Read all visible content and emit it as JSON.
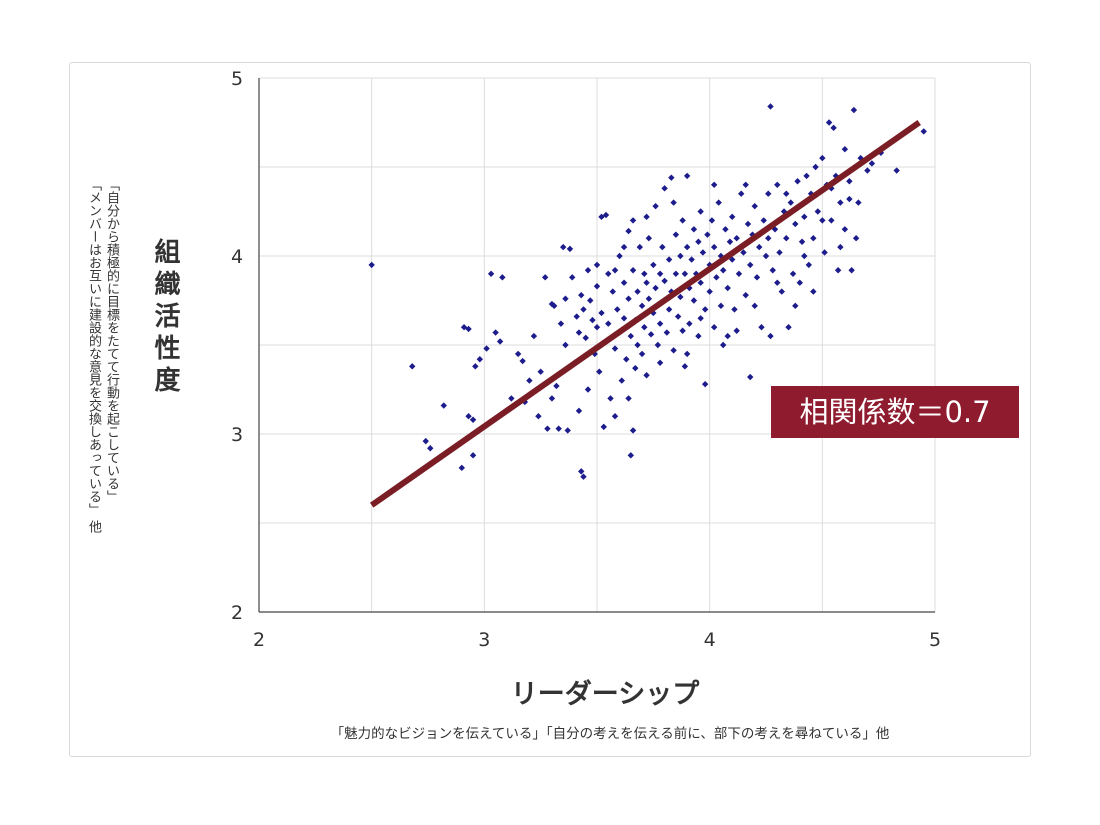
{
  "chart_data": {
    "type": "scatter",
    "title": "",
    "xlabel": "リーダーシップ",
    "xlabel_note": "「魅力的なビジョンを伝えている」「自分の考えを伝える前に、部下の考えを尋ねている」他",
    "ylabel": "組織活性度",
    "ylabel_note_lines": [
      "「自分から積極的に目標をたてて行動を起こしている」",
      "「メンバーはお互いに建設的な意見を交換しあっている」 他"
    ],
    "xlim": [
      2,
      5
    ],
    "ylim": [
      2,
      5
    ],
    "x_ticks": [
      "2",
      "3",
      "4",
      "5"
    ],
    "y_ticks": [
      "2",
      "3",
      "4",
      "5"
    ],
    "grid": true,
    "point_color": "#1c1c8c",
    "trendline": {
      "x": [
        2.5,
        4.93
      ],
      "y": [
        2.6,
        4.75
      ],
      "color": "#7a1d24"
    },
    "annotation": {
      "text": "相関係数＝0.7",
      "background": "#8e1b2e",
      "color": "#ffffff"
    },
    "points": [
      [
        2.5,
        3.95
      ],
      [
        2.68,
        3.38
      ],
      [
        2.74,
        2.96
      ],
      [
        2.76,
        2.92
      ],
      [
        2.82,
        3.16
      ],
      [
        2.9,
        2.81
      ],
      [
        2.91,
        3.6
      ],
      [
        2.93,
        3.59
      ],
      [
        2.93,
        3.1
      ],
      [
        2.95,
        3.08
      ],
      [
        2.95,
        2.88
      ],
      [
        2.96,
        3.38
      ],
      [
        2.98,
        3.42
      ],
      [
        3.01,
        3.48
      ],
      [
        3.03,
        3.9
      ],
      [
        3.05,
        3.57
      ],
      [
        3.07,
        3.52
      ],
      [
        3.08,
        3.88
      ],
      [
        3.1,
        3.13
      ],
      [
        3.12,
        3.2
      ],
      [
        3.15,
        3.45
      ],
      [
        3.17,
        3.41
      ],
      [
        3.18,
        3.18
      ],
      [
        3.2,
        3.3
      ],
      [
        3.22,
        3.55
      ],
      [
        3.24,
        3.1
      ],
      [
        3.25,
        3.35
      ],
      [
        3.27,
        3.88
      ],
      [
        3.28,
        3.03
      ],
      [
        3.3,
        3.2
      ],
      [
        3.31,
        3.72
      ],
      [
        3.32,
        3.27
      ],
      [
        3.33,
        3.03
      ],
      [
        3.34,
        3.62
      ],
      [
        3.35,
        4.05
      ],
      [
        3.36,
        3.76
      ],
      [
        3.36,
        3.5
      ],
      [
        3.37,
        3.02
      ],
      [
        3.38,
        4.04
      ],
      [
        3.39,
        3.88
      ],
      [
        3.4,
        3.4
      ],
      [
        3.41,
        3.66
      ],
      [
        3.42,
        3.57
      ],
      [
        3.42,
        3.13
      ],
      [
        3.43,
        3.78
      ],
      [
        3.43,
        2.79
      ],
      [
        3.44,
        3.7
      ],
      [
        3.44,
        2.76
      ],
      [
        3.45,
        3.54
      ],
      [
        3.46,
        3.92
      ],
      [
        3.46,
        3.25
      ],
      [
        3.47,
        3.75
      ],
      [
        3.48,
        3.64
      ],
      [
        3.49,
        3.45
      ],
      [
        3.5,
        3.83
      ],
      [
        3.5,
        3.6
      ],
      [
        3.51,
        3.35
      ],
      [
        3.52,
        4.22
      ],
      [
        3.52,
        3.68
      ],
      [
        3.53,
        3.04
      ],
      [
        3.54,
        4.23
      ],
      [
        3.55,
        3.9
      ],
      [
        3.55,
        3.62
      ],
      [
        3.56,
        3.2
      ],
      [
        3.57,
        3.8
      ],
      [
        3.58,
        3.48
      ],
      [
        3.58,
        3.1
      ],
      [
        3.59,
        3.7
      ],
      [
        3.6,
        4.0
      ],
      [
        3.6,
        3.57
      ],
      [
        3.61,
        3.3
      ],
      [
        3.62,
        3.85
      ],
      [
        3.62,
        3.65
      ],
      [
        3.63,
        3.42
      ],
      [
        3.64,
        4.14
      ],
      [
        3.64,
        3.76
      ],
      [
        3.65,
        3.55
      ],
      [
        3.65,
        2.88
      ],
      [
        3.66,
        4.2
      ],
      [
        3.66,
        3.92
      ],
      [
        3.67,
        3.64
      ],
      [
        3.67,
        3.37
      ],
      [
        3.68,
        3.8
      ],
      [
        3.68,
        3.5
      ],
      [
        3.69,
        4.05
      ],
      [
        3.7,
        3.72
      ],
      [
        3.7,
        3.45
      ],
      [
        3.71,
        3.9
      ],
      [
        3.71,
        3.6
      ],
      [
        3.72,
        3.85
      ],
      [
        3.72,
        3.33
      ],
      [
        3.73,
        4.1
      ],
      [
        3.73,
        3.76
      ],
      [
        3.74,
        3.56
      ],
      [
        3.75,
        3.95
      ],
      [
        3.75,
        3.68
      ],
      [
        3.76,
        4.28
      ],
      [
        3.76,
        3.82
      ],
      [
        3.77,
        3.5
      ],
      [
        3.78,
        3.9
      ],
      [
        3.78,
        3.62
      ],
      [
        3.79,
        4.05
      ],
      [
        3.79,
        3.74
      ],
      [
        3.8,
        4.38
      ],
      [
        3.8,
        3.86
      ],
      [
        3.81,
        3.57
      ],
      [
        3.82,
        3.98
      ],
      [
        3.82,
        3.7
      ],
      [
        3.83,
        4.44
      ],
      [
        3.83,
        3.8
      ],
      [
        3.84,
        3.47
      ],
      [
        3.85,
        4.12
      ],
      [
        3.85,
        3.9
      ],
      [
        3.86,
        3.66
      ],
      [
        3.87,
        4.0
      ],
      [
        3.87,
        3.77
      ],
      [
        3.88,
        4.2
      ],
      [
        3.88,
        3.58
      ],
      [
        3.89,
        3.9
      ],
      [
        3.89,
        3.38
      ],
      [
        3.9,
        4.45
      ],
      [
        3.9,
        4.05
      ],
      [
        3.91,
        3.82
      ],
      [
        3.91,
        3.62
      ],
      [
        3.92,
        3.98
      ],
      [
        3.93,
        4.15
      ],
      [
        3.93,
        3.75
      ],
      [
        3.94,
        3.9
      ],
      [
        3.95,
        4.08
      ],
      [
        3.95,
        3.55
      ],
      [
        3.96,
        4.25
      ],
      [
        3.96,
        3.85
      ],
      [
        3.97,
        4.02
      ],
      [
        3.98,
        3.7
      ],
      [
        3.98,
        3.28
      ],
      [
        3.99,
        4.12
      ],
      [
        4.0,
        3.95
      ],
      [
        4.0,
        3.8
      ],
      [
        4.01,
        4.2
      ],
      [
        4.02,
        3.6
      ],
      [
        4.02,
        4.05
      ],
      [
        4.03,
        3.88
      ],
      [
        4.04,
        4.3
      ],
      [
        4.05,
        4.0
      ],
      [
        4.05,
        3.72
      ],
      [
        4.06,
        3.92
      ],
      [
        4.07,
        4.15
      ],
      [
        4.08,
        3.55
      ],
      [
        4.08,
        3.82
      ],
      [
        4.09,
        4.08
      ],
      [
        4.1,
        4.22
      ],
      [
        4.1,
        3.98
      ],
      [
        4.11,
        3.7
      ],
      [
        4.12,
        4.1
      ],
      [
        4.13,
        3.9
      ],
      [
        4.14,
        4.35
      ],
      [
        4.15,
        4.02
      ],
      [
        4.16,
        3.78
      ],
      [
        4.17,
        4.18
      ],
      [
        4.18,
        3.95
      ],
      [
        4.18,
        3.32
      ],
      [
        4.19,
        4.12
      ],
      [
        4.2,
        4.28
      ],
      [
        4.21,
        3.88
      ],
      [
        4.22,
        4.05
      ],
      [
        4.23,
        3.6
      ],
      [
        4.24,
        4.2
      ],
      [
        4.25,
        4.0
      ],
      [
        4.26,
        4.35
      ],
      [
        4.27,
        4.84
      ],
      [
        4.27,
        3.55
      ],
      [
        4.28,
        3.92
      ],
      [
        4.29,
        4.15
      ],
      [
        4.3,
        4.4
      ],
      [
        4.31,
        4.02
      ],
      [
        4.32,
        3.8
      ],
      [
        4.33,
        4.25
      ],
      [
        4.34,
        4.1
      ],
      [
        4.35,
        3.6
      ],
      [
        4.36,
        4.3
      ],
      [
        4.37,
        3.9
      ],
      [
        4.38,
        4.18
      ],
      [
        4.39,
        4.42
      ],
      [
        4.4,
        3.85
      ],
      [
        4.41,
        4.08
      ],
      [
        4.42,
        4.22
      ],
      [
        4.43,
        4.45
      ],
      [
        4.44,
        3.95
      ],
      [
        4.45,
        4.35
      ],
      [
        4.46,
        4.1
      ],
      [
        4.47,
        4.5
      ],
      [
        4.48,
        4.25
      ],
      [
        4.5,
        4.55
      ],
      [
        4.51,
        4.02
      ],
      [
        4.52,
        4.4
      ],
      [
        4.53,
        4.75
      ],
      [
        4.54,
        4.2
      ],
      [
        4.55,
        4.72
      ],
      [
        4.56,
        4.45
      ],
      [
        4.57,
        3.92
      ],
      [
        4.58,
        4.3
      ],
      [
        4.6,
        4.15
      ],
      [
        4.6,
        4.6
      ],
      [
        4.62,
        4.32
      ],
      [
        4.63,
        3.92
      ],
      [
        4.64,
        4.82
      ],
      [
        4.65,
        4.1
      ],
      [
        4.67,
        4.55
      ],
      [
        4.7,
        4.48
      ],
      [
        4.72,
        4.52
      ],
      [
        4.76,
        4.58
      ],
      [
        4.83,
        4.48
      ],
      [
        4.95,
        4.7
      ],
      [
        3.3,
        3.73
      ],
      [
        3.5,
        3.95
      ],
      [
        3.58,
        3.92
      ],
      [
        3.62,
        4.05
      ],
      [
        3.64,
        3.2
      ],
      [
        3.66,
        3.02
      ],
      [
        3.72,
        4.22
      ],
      [
        3.78,
        3.4
      ],
      [
        3.84,
        4.3
      ],
      [
        3.9,
        3.45
      ],
      [
        3.96,
        3.65
      ],
      [
        4.02,
        4.4
      ],
      [
        4.06,
        3.5
      ],
      [
        4.12,
        3.58
      ],
      [
        4.16,
        4.4
      ],
      [
        4.2,
        3.72
      ],
      [
        4.26,
        4.1
      ],
      [
        4.3,
        3.85
      ],
      [
        4.34,
        4.35
      ],
      [
        4.38,
        3.72
      ],
      [
        4.42,
        4.0
      ],
      [
        4.46,
        3.8
      ],
      [
        4.5,
        4.2
      ],
      [
        4.54,
        4.38
      ],
      [
        4.58,
        4.05
      ],
      [
        4.62,
        4.42
      ],
      [
        4.66,
        4.3
      ]
    ]
  }
}
